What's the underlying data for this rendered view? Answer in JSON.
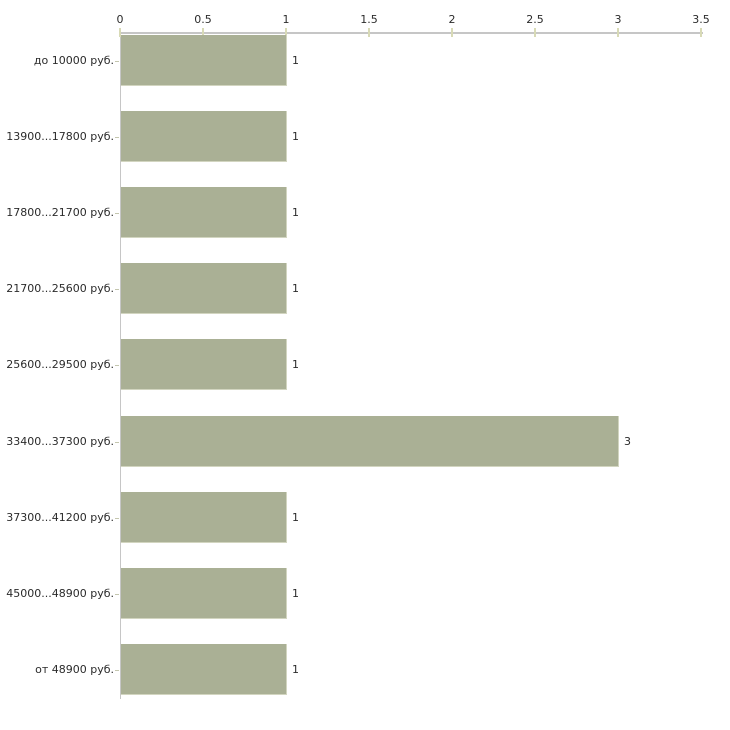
{
  "chart_data": {
    "type": "bar",
    "orientation": "horizontal",
    "title": "",
    "xlabel": "",
    "ylabel": "",
    "categories": [
      "до 10000 руб.",
      "13900...17800 руб.",
      "17800...21700 руб.",
      "21700...25600 руб.",
      "25600...29500 руб.",
      "33400...37300 руб.",
      "37300...41200 руб.",
      "45000...48900 руб.",
      "от 48900 руб."
    ],
    "values": [
      1,
      1,
      1,
      1,
      1,
      3,
      1,
      1,
      1
    ],
    "bar_value_labels": [
      "1",
      "1",
      "1",
      "1",
      "1",
      "3",
      "1",
      "1",
      "1"
    ],
    "x_tick_values": [
      0,
      0.5,
      1,
      1.5,
      2,
      2.5,
      3,
      3.5
    ],
    "x_tick_labels": [
      "0",
      "0.5",
      "1",
      "1.5",
      "2",
      "2.5",
      "3",
      "3.5"
    ],
    "xlim": [
      0,
      3.5
    ],
    "grid": false,
    "legend_position": "none",
    "axis_position": "top",
    "colors": {
      "bar_fill": "#aab095",
      "bar_edge": "#d2d5c0",
      "axis_line": "#c6c6c6",
      "x_tick_mark": "#d8dab6",
      "category_tick_mark": "#c4c6ae",
      "label_text": "#2b2b2b",
      "background": "#ffffff"
    }
  }
}
